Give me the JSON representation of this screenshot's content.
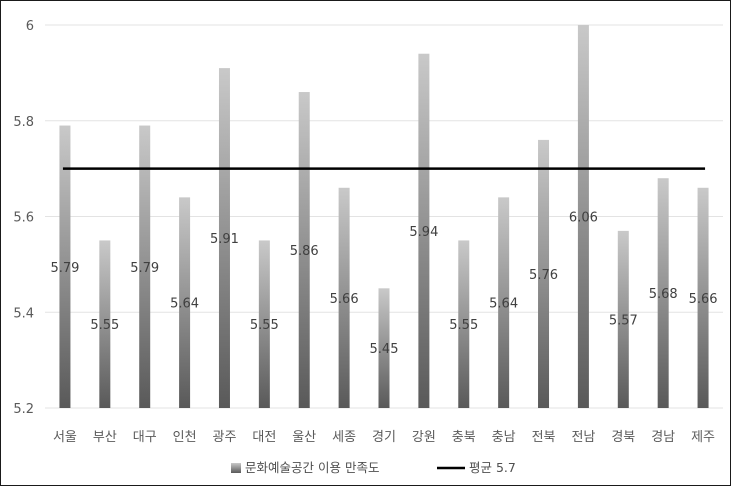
{
  "chart_data": {
    "type": "bar",
    "categories": [
      "서울",
      "부산",
      "대구",
      "인천",
      "광주",
      "대전",
      "울산",
      "세종",
      "경기",
      "강원",
      "충북",
      "충남",
      "전북",
      "전남",
      "경북",
      "경남",
      "제주"
    ],
    "series": [
      {
        "name": "문화예술공간 이용 만족도",
        "values": [
          5.79,
          5.55,
          5.79,
          5.64,
          5.91,
          5.55,
          5.86,
          5.66,
          5.45,
          5.94,
          5.55,
          5.64,
          5.76,
          6.06,
          5.57,
          5.68,
          5.66
        ],
        "data_labels": [
          "5.79",
          "5.55",
          "5.79",
          "5.64",
          "5.91",
          "5.55",
          "5.86",
          "5.66",
          "5.45",
          "5.94",
          "5.55",
          "5.64",
          "5.76",
          "6.06",
          "5.57",
          "5.68",
          "5.66"
        ]
      }
    ],
    "reference_line": {
      "name": "평균 5.7",
      "value": 5.7,
      "color": "#000000"
    },
    "yticks": [
      "5.2",
      "5.4",
      "5.6",
      "5.8",
      "6"
    ],
    "ylim": [
      5.2,
      6.0
    ],
    "grid": true,
    "legend": {
      "position": "bottom",
      "bar_label": "문화예술공간 이용 만족도",
      "line_label": "평균 5.7"
    },
    "colors": {
      "bar_top": "#c9c9c9",
      "bar_bottom": "#595959",
      "average_line": "#000000"
    }
  }
}
